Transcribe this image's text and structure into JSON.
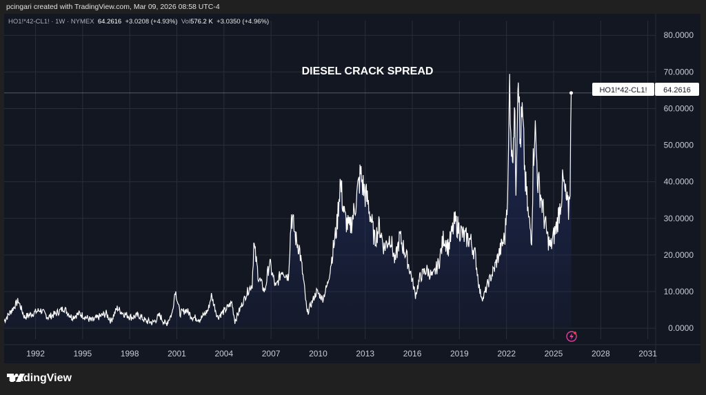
{
  "header": {
    "attribution": "pcingari created with TradingView.com, Mar 09, 2026 08:58 UTC-4"
  },
  "legend": {
    "symbol": "HO1!*42-CL1! · 1W · NYMEX",
    "last": "64.2616",
    "change": "+3.0208 (+4.93%)",
    "vol_label": "Vol",
    "volume": "576.2 K",
    "vol_change": "+3.0350 (+4.96%)"
  },
  "price_tag": {
    "symbol": "HO1!*42-CL1!",
    "value": "64.2616"
  },
  "brand": {
    "name": "TradingView"
  },
  "colors": {
    "panel_bg": "#131722",
    "line": "#ffffff",
    "area": "#1e2a5a",
    "grid": "#2a2e39"
  },
  "chart_data": {
    "type": "area",
    "title": "DIESEL CRACK SPREAD",
    "xlabel": "",
    "ylabel": "",
    "x_ticks": [
      "1992",
      "1995",
      "1998",
      "2001",
      "2004",
      "2007",
      "2010",
      "2013",
      "2016",
      "2019",
      "2022",
      "2025",
      "2028",
      "2031"
    ],
    "y_ticks": [
      "0.0000",
      "10.0000",
      "20.0000",
      "30.0000",
      "40.0000",
      "50.0000",
      "60.0000",
      "70.0000",
      "80.0000"
    ],
    "xlim": [
      1990.0,
      2031.5
    ],
    "ylim": [
      -3,
      84
    ],
    "grid": true,
    "last_value": 64.2616,
    "series": [
      {
        "points": [
          [
            1990.0,
            2
          ],
          [
            1990.5,
            5
          ],
          [
            1990.9,
            7.5
          ],
          [
            1991.3,
            3
          ],
          [
            1991.8,
            4
          ],
          [
            1992.3,
            5
          ],
          [
            1992.8,
            3
          ],
          [
            1993.3,
            4
          ],
          [
            1993.8,
            5.5
          ],
          [
            1994.3,
            3
          ],
          [
            1994.8,
            4
          ],
          [
            1995.2,
            3
          ],
          [
            1995.6,
            2
          ],
          [
            1996.0,
            3
          ],
          [
            1996.5,
            4
          ],
          [
            1996.8,
            2
          ],
          [
            1997.2,
            5.5
          ],
          [
            1997.6,
            4
          ],
          [
            1998.1,
            3
          ],
          [
            1998.6,
            3.5
          ],
          [
            1999.0,
            2
          ],
          [
            1999.5,
            1.5
          ],
          [
            1999.9,
            3.5
          ],
          [
            2000.3,
            1
          ],
          [
            2000.7,
            4
          ],
          [
            2000.9,
            10.5
          ],
          [
            2001.2,
            4
          ],
          [
            2001.6,
            5
          ],
          [
            2002.0,
            3
          ],
          [
            2002.5,
            2.5
          ],
          [
            2003.0,
            5
          ],
          [
            2003.2,
            9
          ],
          [
            2003.6,
            3
          ],
          [
            2004.1,
            5
          ],
          [
            2004.5,
            7
          ],
          [
            2004.7,
            2
          ],
          [
            2005.1,
            6
          ],
          [
            2005.5,
            10
          ],
          [
            2005.8,
            12
          ],
          [
            2005.9,
            23
          ],
          [
            2006.2,
            14
          ],
          [
            2006.6,
            10
          ],
          [
            2006.9,
            18
          ],
          [
            2007.3,
            11
          ],
          [
            2007.7,
            16
          ],
          [
            2008.1,
            14
          ],
          [
            2008.3,
            31
          ],
          [
            2008.6,
            24
          ],
          [
            2008.8,
            22
          ],
          [
            2009.1,
            12
          ],
          [
            2009.3,
            4
          ],
          [
            2009.6,
            7
          ],
          [
            2009.9,
            10
          ],
          [
            2010.3,
            8
          ],
          [
            2010.6,
            12
          ],
          [
            2010.9,
            20
          ],
          [
            2011.2,
            28
          ],
          [
            2011.4,
            40
          ],
          [
            2011.7,
            30
          ],
          [
            2012.0,
            27
          ],
          [
            2012.3,
            32
          ],
          [
            2012.7,
            42
          ],
          [
            2012.9,
            38
          ],
          [
            2013.2,
            34
          ],
          [
            2013.6,
            24
          ],
          [
            2013.9,
            28
          ],
          [
            2014.2,
            22
          ],
          [
            2014.6,
            25
          ],
          [
            2014.9,
            18
          ],
          [
            2015.2,
            25
          ],
          [
            2015.6,
            20
          ],
          [
            2015.9,
            15
          ],
          [
            2016.2,
            9
          ],
          [
            2016.5,
            14
          ],
          [
            2016.9,
            16
          ],
          [
            2017.3,
            14
          ],
          [
            2017.7,
            18
          ],
          [
            2018.0,
            25
          ],
          [
            2018.3,
            22
          ],
          [
            2018.7,
            29
          ],
          [
            2019.0,
            27
          ],
          [
            2019.3,
            25
          ],
          [
            2019.7,
            24
          ],
          [
            2020.0,
            20
          ],
          [
            2020.3,
            10
          ],
          [
            2020.5,
            8
          ],
          [
            2020.8,
            12
          ],
          [
            2021.2,
            16
          ],
          [
            2021.5,
            20
          ],
          [
            2021.9,
            25
          ],
          [
            2022.1,
            40
          ],
          [
            2022.2,
            68
          ],
          [
            2022.35,
            45
          ],
          [
            2022.5,
            60
          ],
          [
            2022.6,
            40
          ],
          [
            2022.75,
            75
          ],
          [
            2022.85,
            50
          ],
          [
            2023.0,
            58
          ],
          [
            2023.2,
            40
          ],
          [
            2023.4,
            30
          ],
          [
            2023.6,
            25
          ],
          [
            2023.7,
            45
          ],
          [
            2023.8,
            56
          ],
          [
            2024.0,
            40
          ],
          [
            2024.2,
            36
          ],
          [
            2024.4,
            30
          ],
          [
            2024.6,
            25
          ],
          [
            2024.8,
            22
          ],
          [
            2025.0,
            25
          ],
          [
            2025.2,
            28
          ],
          [
            2025.4,
            33
          ],
          [
            2025.6,
            40
          ],
          [
            2025.8,
            35
          ],
          [
            2025.95,
            32
          ],
          [
            2026.05,
            40
          ],
          [
            2026.12,
            64.2616
          ]
        ]
      }
    ]
  }
}
